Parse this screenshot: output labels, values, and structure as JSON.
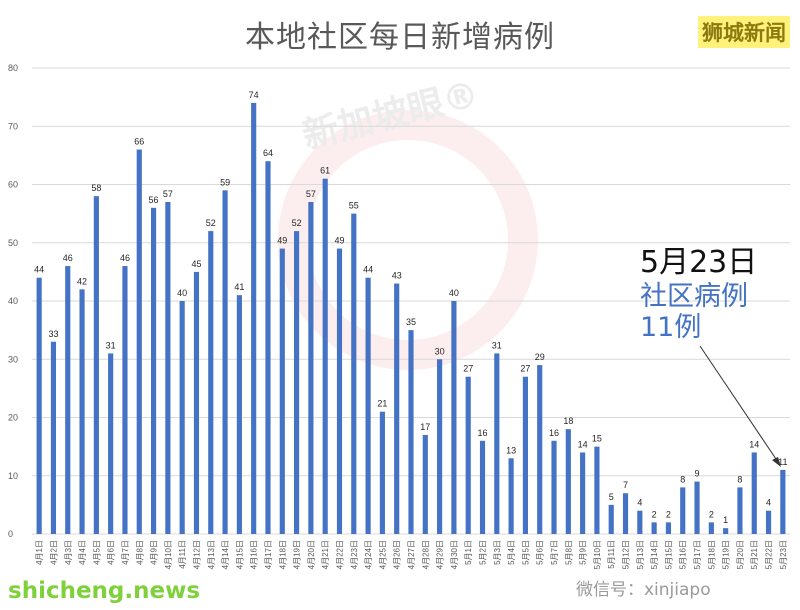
{
  "header": {
    "title": "本地社区每日新增病例",
    "brand": "狮城新闻"
  },
  "watermark": "新加坡眼®",
  "annotation": {
    "date": "5月23日",
    "line1": "社区病例",
    "line2": "11例"
  },
  "footer": {
    "site": "shicheng.news",
    "wechat": "微信号：xinjiapo"
  },
  "colors": {
    "bar": "#4472c4",
    "grid": "#d9d9d9",
    "annot_blue": "#4472c4",
    "brand_bg": "#fff27a",
    "site_green": "#7fd13b"
  },
  "chart_data": {
    "type": "bar",
    "title": "本地社区每日新增病例",
    "xlabel": "",
    "ylabel": "",
    "ylim": [
      0,
      80
    ],
    "yticks": [
      0,
      10,
      20,
      30,
      40,
      50,
      60,
      70,
      80
    ],
    "grid": true,
    "categories": [
      "4月1日",
      "4月2日",
      "4月3日",
      "4月4日",
      "4月5日",
      "4月6日",
      "4月7日",
      "4月8日",
      "4月9日",
      "4月10日",
      "4月11日",
      "4月12日",
      "4月13日",
      "4月14日",
      "4月15日",
      "4月16日",
      "4月17日",
      "4月18日",
      "4月19日",
      "4月20日",
      "4月21日",
      "4月22日",
      "4月23日",
      "4月24日",
      "4月25日",
      "4月26日",
      "4月27日",
      "4月28日",
      "4月29日",
      "4月30日",
      "5月1日",
      "5月2日",
      "5月3日",
      "5月4日",
      "5月5日",
      "5月6日",
      "5月7日",
      "5月8日",
      "5月9日",
      "5月10日",
      "5月11日",
      "5月12日",
      "5月13日",
      "5月14日",
      "5月15日",
      "5月16日",
      "5月17日",
      "5月18日",
      "5月19日",
      "5月20日",
      "5月21日",
      "5月22日",
      "5月23日"
    ],
    "values": [
      44,
      33,
      46,
      42,
      58,
      31,
      46,
      66,
      56,
      57,
      40,
      45,
      52,
      59,
      41,
      74,
      64,
      49,
      52,
      57,
      61,
      49,
      55,
      44,
      21,
      43,
      35,
      17,
      30,
      40,
      27,
      16,
      31,
      13,
      27,
      29,
      16,
      18,
      14,
      15,
      5,
      7,
      4,
      2,
      2,
      8,
      9,
      2,
      1,
      8,
      14,
      4,
      11
    ]
  }
}
